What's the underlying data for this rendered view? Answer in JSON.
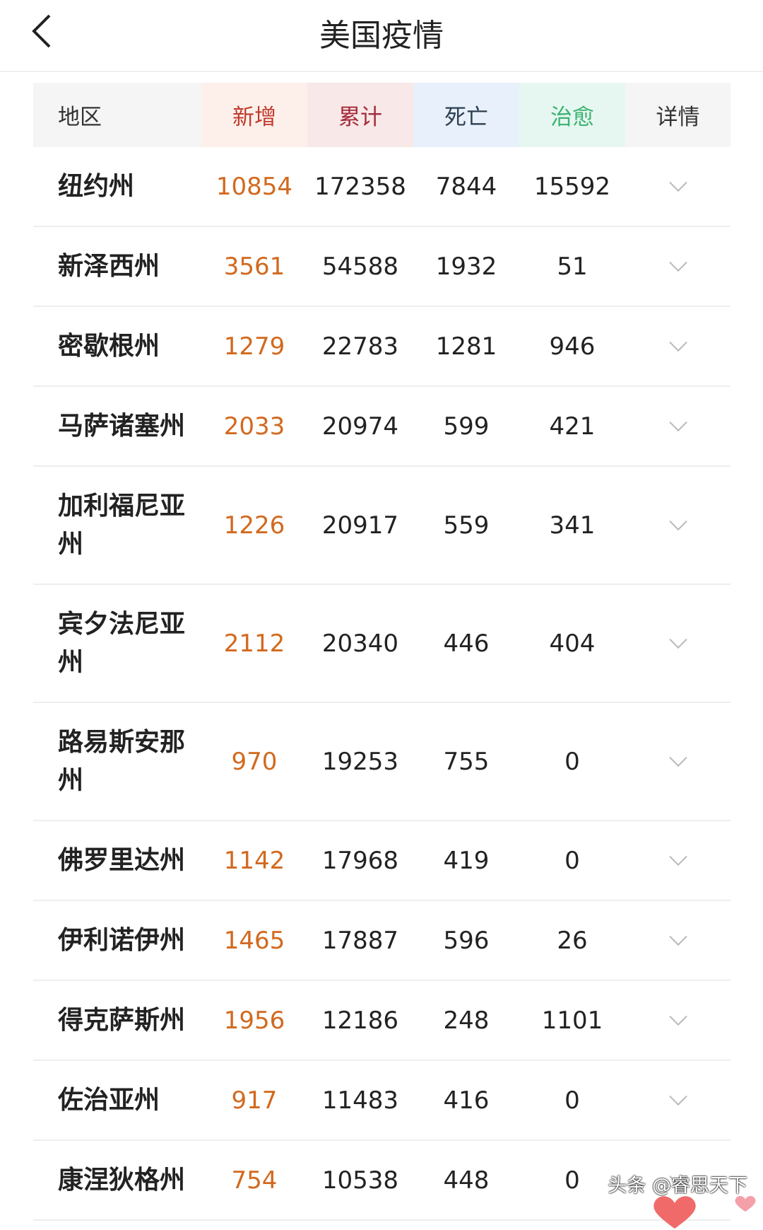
{
  "header": {
    "title": "美国疫情",
    "back_icon": "chevron-left-icon"
  },
  "table": {
    "columns": [
      {
        "label": "地区",
        "bg": "#f5f5f5",
        "color": "#333333"
      },
      {
        "label": "新增",
        "bg": "#fdf0ea",
        "color": "#c0392b"
      },
      {
        "label": "累计",
        "bg": "#f8e8e8",
        "color": "#a52a3a"
      },
      {
        "label": "死亡",
        "bg": "#e8f1fb",
        "color": "#2c3e50"
      },
      {
        "label": "治愈",
        "bg": "#e6f7f1",
        "color": "#3cb371"
      },
      {
        "label": "详情",
        "bg": "#f5f5f5",
        "color": "#333333"
      }
    ],
    "rows": [
      {
        "region": "纽约州",
        "new": "10854",
        "total": "172358",
        "deaths": "7844",
        "cured": "15592"
      },
      {
        "region": "新泽西州",
        "new": "3561",
        "total": "54588",
        "deaths": "1932",
        "cured": "51"
      },
      {
        "region": "密歇根州",
        "new": "1279",
        "total": "22783",
        "deaths": "1281",
        "cured": "946"
      },
      {
        "region": "马萨诸塞州",
        "new": "2033",
        "total": "20974",
        "deaths": "599",
        "cured": "421"
      },
      {
        "region": "加利福尼亚州",
        "new": "1226",
        "total": "20917",
        "deaths": "559",
        "cured": "341"
      },
      {
        "region": "宾夕法尼亚州",
        "new": "2112",
        "total": "20340",
        "deaths": "446",
        "cured": "404"
      },
      {
        "region": "路易斯安那州",
        "new": "970",
        "total": "19253",
        "deaths": "755",
        "cured": "0"
      },
      {
        "region": "佛罗里达州",
        "new": "1142",
        "total": "17968",
        "deaths": "419",
        "cured": "0"
      },
      {
        "region": "伊利诺伊州",
        "new": "1465",
        "total": "17887",
        "deaths": "596",
        "cured": "26"
      },
      {
        "region": "得克萨斯州",
        "new": "1956",
        "total": "12186",
        "deaths": "248",
        "cured": "1101"
      },
      {
        "region": "佐治亚州",
        "new": "917",
        "total": "11483",
        "deaths": "416",
        "cured": "0"
      },
      {
        "region": "康涅狄格州",
        "new": "754",
        "total": "10538",
        "deaths": "448",
        "cured": "0"
      }
    ]
  },
  "watermark": "头条 @睿思天下"
}
